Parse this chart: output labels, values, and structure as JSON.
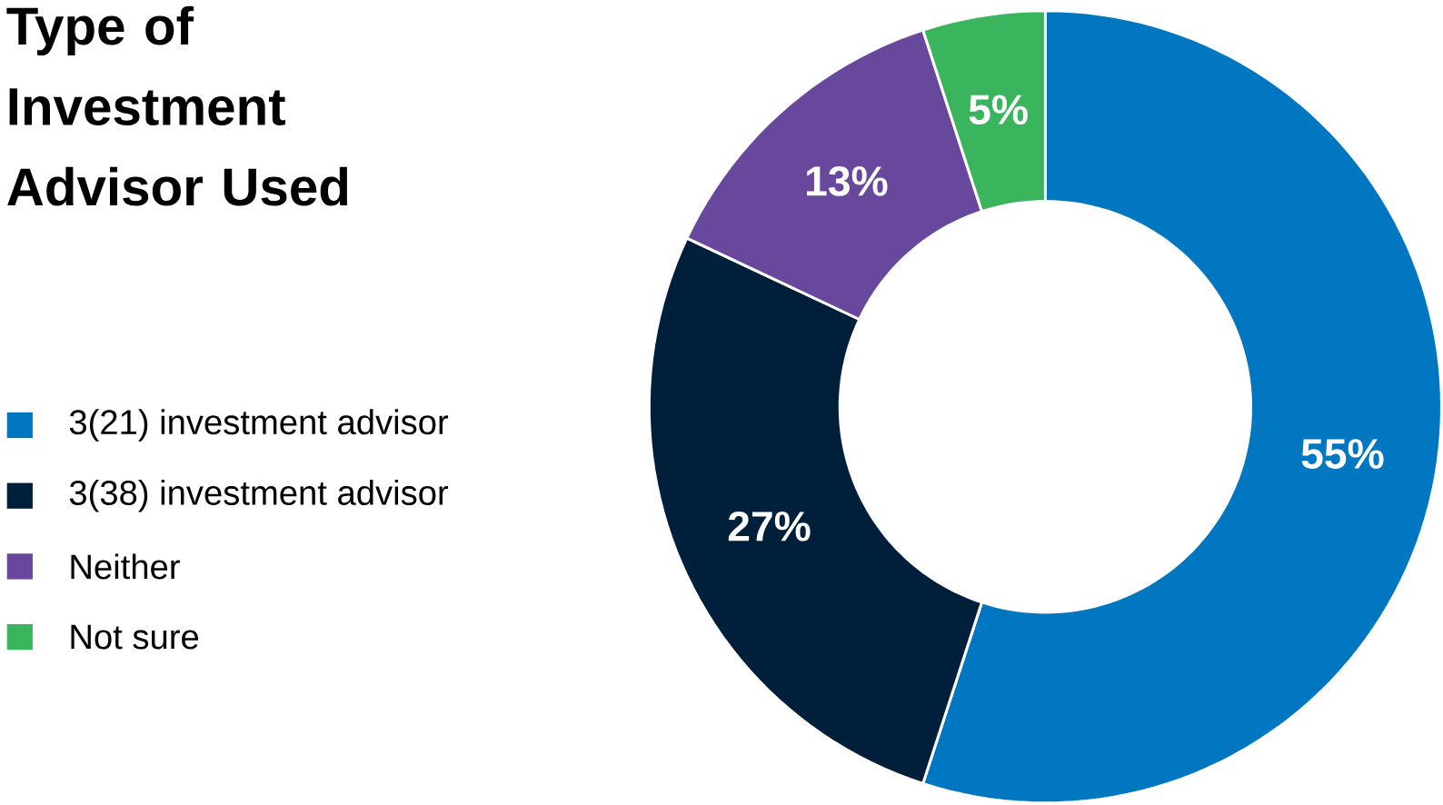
{
  "chart_data": {
    "type": "donut",
    "title": "Type of Investment Advisor Used",
    "categories": [
      "3(21) investment advisor",
      "3(38) investment advisor",
      "Neither",
      "Not sure"
    ],
    "values": [
      55,
      27,
      13,
      5
    ],
    "colors": [
      "#0077c0",
      "#001f3a",
      "#67489d",
      "#3bb45e"
    ],
    "value_labels": [
      "55%",
      "27%",
      "13%",
      "5%"
    ],
    "legend": "left"
  }
}
